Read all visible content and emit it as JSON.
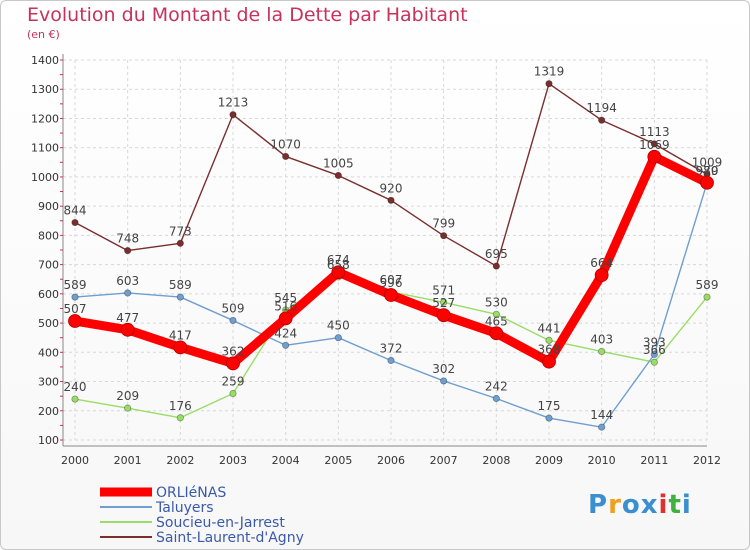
{
  "chart_data": {
    "type": "line",
    "title": "Evolution du Montant de la Dette par Habitant",
    "subtitle": "(en €)",
    "x": [
      "2000",
      "2001",
      "2002",
      "2003",
      "2004",
      "2005",
      "2006",
      "2007",
      "2008",
      "2009",
      "2010",
      "2011",
      "2012"
    ],
    "yticks": [
      100,
      200,
      300,
      400,
      500,
      600,
      700,
      800,
      900,
      1000,
      1100,
      1200,
      1300,
      1400
    ],
    "ylim": [
      100,
      1400
    ],
    "grid": true,
    "legend_position": "bottom-left",
    "series": [
      {
        "name": "ORLIéNAS",
        "color": "#ff0000",
        "values": [
          507,
          477,
          417,
          362,
          516,
          674,
          596,
          527,
          465,
          368,
          664,
          1069,
          980
        ],
        "labels": [
          "507",
          "477",
          "417",
          "362",
          "516",
          "674",
          "596",
          "527",
          "465",
          "368",
          "664",
          "1069",
          "980"
        ]
      },
      {
        "name": "Taluyers",
        "color": "#6f9fcf",
        "values": [
          589,
          603,
          589,
          509,
          424,
          450,
          372,
          302,
          242,
          175,
          144,
          393,
          979
        ],
        "labels": [
          "589",
          "603",
          "589",
          "509",
          "424",
          "450",
          "372",
          "302",
          "242",
          "175",
          "144",
          "393",
          "979"
        ]
      },
      {
        "name": "Soucieu-en-Jarrest",
        "color": "#99dd66",
        "values": [
          240,
          209,
          176,
          259,
          545,
          658,
          607,
          571,
          530,
          441,
          403,
          366,
          589
        ],
        "labels": [
          "240",
          "209",
          "176",
          "259",
          "545",
          "658",
          "607",
          "571",
          "530",
          "441",
          "403",
          "366",
          "589"
        ]
      },
      {
        "name": "Saint-Laurent-d'Agny",
        "color": "#7a2e2e",
        "values": [
          844,
          748,
          773,
          1213,
          1070,
          1005,
          920,
          799,
          695,
          1319,
          1194,
          1113,
          1009
        ],
        "labels": [
          "844",
          "748",
          "773",
          "1213",
          "1070",
          "1005",
          "920",
          "799",
          "695",
          "1319",
          "1194",
          "1113",
          "1009"
        ]
      }
    ]
  },
  "logo": {
    "letters": [
      "P",
      "r",
      "o",
      "x",
      "i",
      "t",
      "i"
    ],
    "colors": [
      "#3a8fd0",
      "#f0a020",
      "#3a8fd0",
      "#3a8fd0",
      "#e03030",
      "#40b040",
      "#3a8fd0"
    ]
  }
}
